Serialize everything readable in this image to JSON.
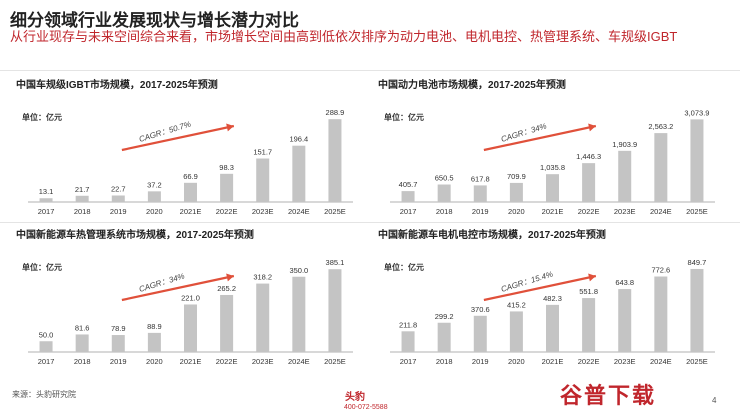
{
  "header": {
    "title": "细分领域行业发展现状与增长潜力对比",
    "subtitle": "从行业现存与未来空间综合来看，市场增长空间由高到低依次排序为动力电池、电机电控、热管理系统、车规级IGBT"
  },
  "footer": {
    "source": "来源：头豹研究院",
    "logo_text": "头豹",
    "phone": "400-072-5588",
    "page": "4",
    "watermark": "谷普下载"
  },
  "colors": {
    "bar": "#c4c4c4",
    "arrow": "#e0503a",
    "subtitle": "#c0262c"
  },
  "chart_data": [
    {
      "type": "bar",
      "title": "中国车规级IGBT市场规模，2017-2025年预测",
      "unit": "单位：亿元",
      "cagr": "CAGR：50.7%",
      "categories": [
        "2017",
        "2018",
        "2019",
        "2020",
        "2021E",
        "2022E",
        "2023E",
        "2024E",
        "2025E"
      ],
      "values": [
        13.1,
        21.7,
        22.7,
        37.2,
        66.9,
        98.3,
        151.7,
        196.4,
        288.9
      ],
      "labels": [
        "13.1",
        "21.7",
        "22.7",
        "37.2",
        "66.9",
        "98.3",
        "151.7",
        "196.4",
        "288.9"
      ],
      "ylim": [
        0,
        300
      ]
    },
    {
      "type": "bar",
      "title": "中国动力电池市场规模，2017-2025年预测",
      "unit": "单位：亿元",
      "cagr": "CAGR：34%",
      "categories": [
        "2017",
        "2018",
        "2019",
        "2020",
        "2021E",
        "2022E",
        "2023E",
        "2024E",
        "2025E"
      ],
      "values": [
        405.7,
        650.5,
        617.8,
        709.9,
        1035.8,
        1446.3,
        1903.9,
        2563.2,
        3073.9
      ],
      "labels": [
        "405.7",
        "650.5",
        "617.8",
        "709.9",
        "1,035.8",
        "1,446.3",
        "1,903.9",
        "2,563.2",
        "3,073.9"
      ],
      "ylim": [
        0,
        3200
      ]
    },
    {
      "type": "bar",
      "title": "中国新能源车热管理系统市场规模，2017-2025年预测",
      "unit": "单位：亿元",
      "cagr": "CAGR：34%",
      "categories": [
        "2017",
        "2018",
        "2019",
        "2020",
        "2021E",
        "2022E",
        "2023E",
        "2024E",
        "2025E"
      ],
      "values": [
        50.0,
        81.6,
        78.9,
        88.9,
        221.0,
        265.2,
        318.2,
        350.0,
        385.1
      ],
      "labels": [
        "50.0",
        "81.6",
        "78.9",
        "88.9",
        "221.0",
        "265.2",
        "318.2",
        "350.0",
        "385.1"
      ],
      "ylim": [
        0,
        400
      ]
    },
    {
      "type": "bar",
      "title": "中国新能源车电机电控市场规模，2017-2025年预测",
      "unit": "单位：亿元",
      "cagr": "CAGR：15.4%",
      "categories": [
        "2017",
        "2018",
        "2019",
        "2020",
        "2021E",
        "2022E",
        "2023E",
        "2024E",
        "2025E"
      ],
      "values": [
        211.8,
        299.2,
        370.6,
        415.2,
        482.3,
        551.8,
        643.8,
        772.6,
        849.7
      ],
      "labels": [
        "211.8",
        "299.2",
        "370.6",
        "415.2",
        "482.3",
        "551.8",
        "643.8",
        "772.6",
        "849.7"
      ],
      "ylim": [
        0,
        880
      ]
    }
  ]
}
